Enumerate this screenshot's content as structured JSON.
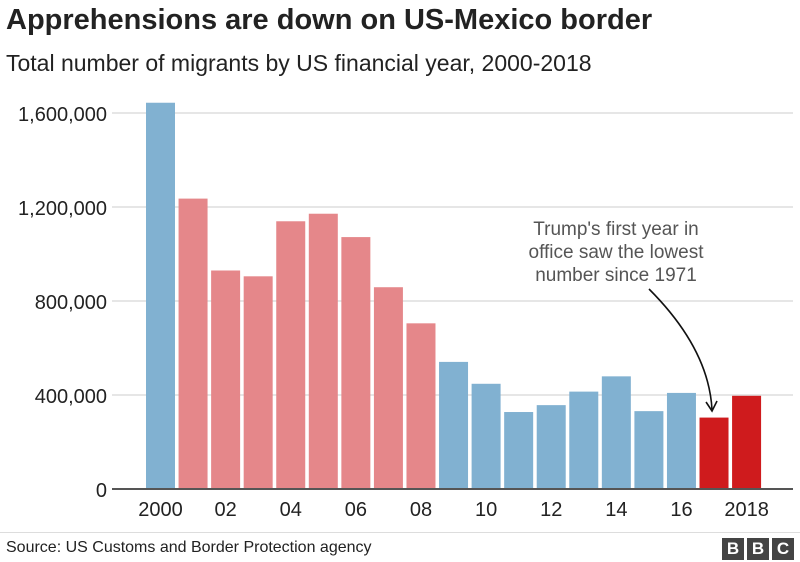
{
  "title": "Apprehensions are down on US-Mexico border",
  "subtitle": "Total number of migrants by US financial year, 2000-2018",
  "source": "Source: US Customs and Border Protection agency",
  "logo": "BBC",
  "colors": {
    "blue": "#81b1d1",
    "pink": "#e5878a",
    "red": "#cf1b1d",
    "grid": "#cccccc",
    "axis": "#555555"
  },
  "chart_data": {
    "type": "bar",
    "title": "Apprehensions are down on US-Mexico border",
    "subtitle": "Total number of migrants by US financial year, 2000-2018",
    "categories": [
      "2000",
      "2001",
      "2002",
      "2003",
      "2004",
      "2005",
      "2006",
      "2007",
      "2008",
      "2009",
      "2010",
      "2011",
      "2012",
      "2013",
      "2014",
      "2015",
      "2016",
      "2017",
      "2018"
    ],
    "values": [
      1643679,
      1235718,
      929809,
      905065,
      1139282,
      1171396,
      1071972,
      858638,
      705005,
      540865,
      447731,
      327577,
      356873,
      414397,
      479371,
      331333,
      408870,
      303916,
      396579
    ],
    "bar_colors": [
      "blue",
      "pink",
      "pink",
      "pink",
      "pink",
      "pink",
      "pink",
      "pink",
      "pink",
      "blue",
      "blue",
      "blue",
      "blue",
      "blue",
      "blue",
      "blue",
      "blue",
      "red",
      "red"
    ],
    "ylim": [
      0,
      1700000
    ],
    "yticks": [
      0,
      400000,
      800000,
      1200000,
      1600000
    ],
    "ytick_labels": [
      "0",
      "400,000",
      "800,000",
      "1,200,000",
      "1,600,000"
    ],
    "xtick_labels": [
      {
        "index": 0,
        "label": "2000"
      },
      {
        "index": 2,
        "label": "02"
      },
      {
        "index": 4,
        "label": "04"
      },
      {
        "index": 6,
        "label": "06"
      },
      {
        "index": 8,
        "label": "08"
      },
      {
        "index": 10,
        "label": "10"
      },
      {
        "index": 12,
        "label": "12"
      },
      {
        "index": 14,
        "label": "14"
      },
      {
        "index": 16,
        "label": "16"
      },
      {
        "index": 18,
        "label": "2018"
      }
    ],
    "grid": true,
    "annotation": {
      "lines": [
        "Trump's first year in",
        "office saw the lowest",
        "number since 1971"
      ],
      "target_index": 17
    }
  }
}
